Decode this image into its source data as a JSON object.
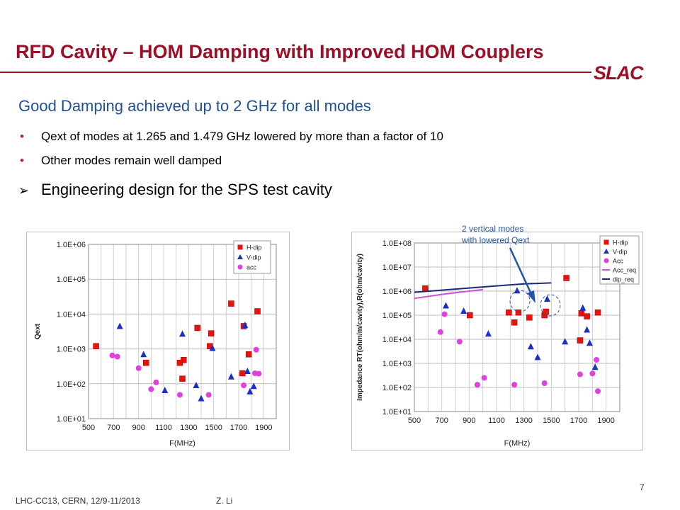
{
  "slide": {
    "title": "RFD Cavity – HOM Damping with Improved HOM Couplers",
    "logo_text": "SLAC",
    "heading": "Good Damping achieved up to 2 GHz for all modes",
    "bullets": [
      "Qext of  modes at 1.265 and 1.479 GHz lowered by more than a factor of 10",
      "Other modes remain well damped"
    ],
    "arrow_bullet": "Engineering design for the SPS test cavity",
    "callout": [
      "2 vertical modes",
      "with lowered Qext"
    ],
    "footer_left": "LHC-CC13, CERN, 12/9-11/2013",
    "footer_author": "Z. Li",
    "page_number": "7",
    "colors": {
      "title": "#9b1026",
      "heading": "#1f4f96",
      "h_dip": "#e8140c",
      "v_dip": "#1a2fc4",
      "acc": "#e040dd",
      "acc_req": "#d34fd6",
      "dip_req": "#1a2a7a"
    }
  },
  "chart_data": [
    {
      "type": "scatter",
      "ylog": true,
      "xlabel": "F(MHz)",
      "ylabel": "Qext",
      "xlim": [
        500,
        2000
      ],
      "xticks": [
        500,
        600,
        700,
        800,
        900,
        1000,
        1100,
        1200,
        1300,
        1400,
        1500,
        1600,
        1700,
        1800,
        1900,
        2000
      ],
      "xtick_labels": [
        "500",
        "",
        "700",
        "",
        "900",
        "",
        "1100",
        "",
        "1300",
        "",
        "1500",
        "",
        "1700",
        "",
        "1900",
        ""
      ],
      "ylim_exp": [
        1,
        6
      ],
      "ytick_labels": [
        "1.0E+01",
        "1.0E+02",
        "1.0E+03",
        "1.0E+04",
        "1.0E+05",
        "1.0E+06"
      ],
      "legend_position": "top-right",
      "series": [
        {
          "name": "H-dip",
          "marker": "square",
          "color": "#e8140c",
          "points": [
            [
              560,
              1200
            ],
            [
              960,
              400
            ],
            [
              1230,
              400
            ],
            [
              1250,
              140
            ],
            [
              1260,
              480
            ],
            [
              1370,
              4000
            ],
            [
              1470,
              1200
            ],
            [
              1480,
              2800
            ],
            [
              1640,
              20000
            ],
            [
              1730,
              200
            ],
            [
              1740,
              4500
            ],
            [
              1780,
              700
            ],
            [
              1850,
              12000
            ]
          ]
        },
        {
          "name": "V-dip",
          "marker": "triangle",
          "color": "#1a2fc4",
          "points": [
            [
              750,
              4500
            ],
            [
              940,
              700
            ],
            [
              1110,
              65
            ],
            [
              1250,
              2700
            ],
            [
              1360,
              90
            ],
            [
              1400,
              38
            ],
            [
              1490,
              1050
            ],
            [
              1640,
              160
            ],
            [
              1750,
              4800
            ],
            [
              1770,
              230
            ],
            [
              1790,
              60
            ],
            [
              1820,
              85
            ]
          ]
        },
        {
          "name": "acc",
          "marker": "circle",
          "color": "#e040dd",
          "points": [
            [
              690,
              650
            ],
            [
              730,
              600
            ],
            [
              900,
              280
            ],
            [
              1000,
              70
            ],
            [
              1040,
              110
            ],
            [
              1230,
              48
            ],
            [
              1460,
              48
            ],
            [
              1740,
              90
            ],
            [
              1830,
              200
            ],
            [
              1840,
              950
            ],
            [
              1860,
              195
            ]
          ]
        }
      ]
    },
    {
      "type": "scatter",
      "ylog": true,
      "xlabel": "F(MHz)",
      "ylabel": "Impedance RT(ohm/m/cavity),R(ohm/cavity)",
      "xlim": [
        500,
        2000
      ],
      "xticks": [
        500,
        600,
        700,
        800,
        900,
        1000,
        1100,
        1200,
        1300,
        1400,
        1500,
        1600,
        1700,
        1800,
        1900,
        2000
      ],
      "xtick_labels": [
        "500",
        "",
        "700",
        "",
        "900",
        "",
        "1100",
        "",
        "1300",
        "",
        "1500",
        "",
        "1700",
        "",
        "1900",
        ""
      ],
      "ylim_exp": [
        1,
        8
      ],
      "ytick_labels": [
        "1.0E+01",
        "1.0E+02",
        "1.0E+03",
        "1.0E+04",
        "1.0E+05",
        "1.0E+06",
        "1.0E+07",
        "1.0E+08"
      ],
      "legend_position": "top-right",
      "series": [
        {
          "name": "H-dip",
          "marker": "square",
          "color": "#e8140c",
          "points": [
            [
              580,
              1300000
            ],
            [
              905,
              100000
            ],
            [
              1190,
              130000
            ],
            [
              1230,
              50000
            ],
            [
              1260,
              130000
            ],
            [
              1340,
              80000
            ],
            [
              1450,
              100000
            ],
            [
              1460,
              140000
            ],
            [
              1610,
              3500000
            ],
            [
              1710,
              9000
            ],
            [
              1720,
              120000
            ],
            [
              1760,
              90000
            ],
            [
              1840,
              130000
            ]
          ]
        },
        {
          "name": "V-dip",
          "marker": "triangle",
          "color": "#1a2fc4",
          "points": [
            [
              730,
              250000
            ],
            [
              860,
              150000
            ],
            [
              1040,
              17000
            ],
            [
              1250,
              1050000
            ],
            [
              1350,
              5000
            ],
            [
              1400,
              1800
            ],
            [
              1470,
              470000
            ],
            [
              1600,
              8000
            ],
            [
              1730,
              200000
            ],
            [
              1760,
              25000
            ],
            [
              1780,
              7000
            ],
            [
              1820,
              700
            ]
          ]
        },
        {
          "name": "Acc",
          "marker": "circle",
          "color": "#e040dd",
          "points": [
            [
              690,
              20000
            ],
            [
              720,
              110000
            ],
            [
              830,
              8000
            ],
            [
              960,
              130
            ],
            [
              1010,
              250
            ],
            [
              1230,
              130
            ],
            [
              1450,
              150
            ],
            [
              1710,
              350
            ],
            [
              1800,
              380
            ],
            [
              1830,
              1400
            ],
            [
              1840,
              70
            ]
          ]
        },
        {
          "name": "Acc_req",
          "type": "line",
          "color": "#d34fd6",
          "points": [
            [
              500,
              500000
            ],
            [
              600,
              600000
            ],
            [
              700,
              730000
            ],
            [
              800,
              860000
            ],
            [
              900,
              1000000
            ],
            [
              1000,
              1150000
            ]
          ]
        },
        {
          "name": "dip_req",
          "type": "line",
          "color": "#1a2a7a",
          "points": [
            [
              500,
              900000
            ],
            [
              700,
              1100000
            ],
            [
              900,
              1350000
            ],
            [
              1100,
              1650000
            ],
            [
              1300,
              2000000
            ],
            [
              1500,
              2200000
            ]
          ]
        }
      ]
    }
  ]
}
